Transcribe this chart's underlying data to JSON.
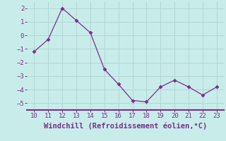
{
  "x": [
    10,
    11,
    12,
    13,
    14,
    15,
    16,
    17,
    18,
    19,
    20,
    21,
    22,
    23
  ],
  "y": [
    -1.2,
    -0.3,
    2.0,
    1.1,
    0.2,
    -2.5,
    -3.6,
    -4.8,
    -4.9,
    -3.8,
    -3.3,
    -3.8,
    -4.4,
    -3.8
  ],
  "line_color": "#7b2d8b",
  "marker": "D",
  "marker_size": 2.5,
  "bg_color": "#c8ecea",
  "grid_color": "#b0d8d5",
  "xlabel": "Windchill (Refroidissement éolien,°C)",
  "xlabel_color": "#7b2d8b",
  "xlim": [
    9.5,
    23.5
  ],
  "ylim": [
    -5.5,
    2.5
  ],
  "xticks": [
    10,
    11,
    12,
    13,
    14,
    15,
    16,
    17,
    18,
    19,
    20,
    21,
    22,
    23
  ],
  "yticks": [
    -5,
    -4,
    -3,
    -2,
    -1,
    0,
    1,
    2
  ],
  "tick_color": "#7b2d8b",
  "tick_fontsize": 6.5,
  "xlabel_fontsize": 7.5,
  "spine_color": "#7b2d8b"
}
